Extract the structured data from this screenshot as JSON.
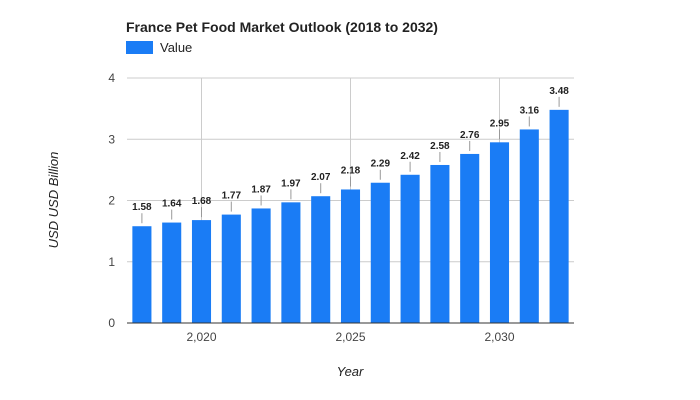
{
  "chart_data": {
    "type": "bar",
    "title": "France Pet Food Market Outlook (2018 to 2032)",
    "xlabel": "Year",
    "ylabel": "USD USD Billion",
    "series": [
      {
        "name": "Value",
        "color": "#1a7cf5",
        "x": [
          2018,
          2019,
          2020,
          2021,
          2022,
          2023,
          2024,
          2025,
          2026,
          2027,
          2028,
          2029,
          2030,
          2031,
          2032
        ],
        "values": [
          1.58,
          1.64,
          1.68,
          1.77,
          1.87,
          1.97,
          2.07,
          2.18,
          2.29,
          2.42,
          2.58,
          2.76,
          2.95,
          3.16,
          3.48
        ]
      }
    ],
    "x_ticks": [
      2020,
      2025,
      2030
    ],
    "x_tick_labels": [
      "2,020",
      "2,025",
      "2,030"
    ],
    "y_ticks": [
      0,
      1,
      2,
      3,
      4
    ],
    "ylim": [
      0,
      4
    ],
    "xlim": [
      2017.5,
      2032.5
    ],
    "grid": true,
    "legend": "top-left"
  }
}
